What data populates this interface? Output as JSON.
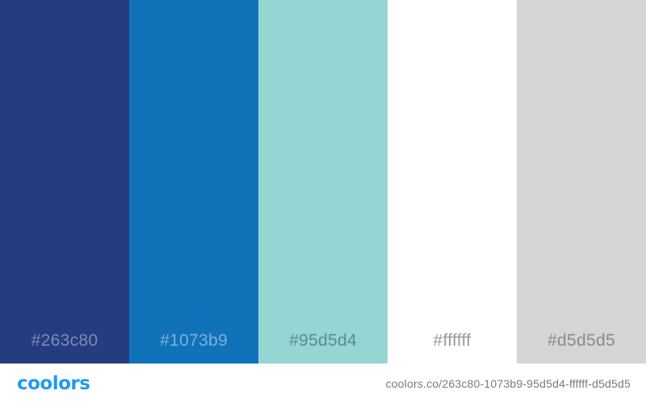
{
  "palette": {
    "swatches": [
      {
        "hex": "#263c80",
        "label": "#263c80",
        "label_color": "#7f8bb4"
      },
      {
        "hex": "#1073b9",
        "label": "#1073b9",
        "label_color": "#7eb0d8"
      },
      {
        "hex": "#95d5d4",
        "label": "#95d5d4",
        "label_color": "#5f8b8b"
      },
      {
        "hex": "#ffffff",
        "label": "#ffffff",
        "label_color": "#9a9a9a"
      },
      {
        "hex": "#d5d5d5",
        "label": "#d5d5d5",
        "label_color": "#8a8a8a"
      }
    ]
  },
  "footer": {
    "logo_text": "coolors",
    "logo_color": "#1d9bf0",
    "url": "coolors.co/263c80-1073b9-95d5d4-ffffff-d5d5d5"
  }
}
